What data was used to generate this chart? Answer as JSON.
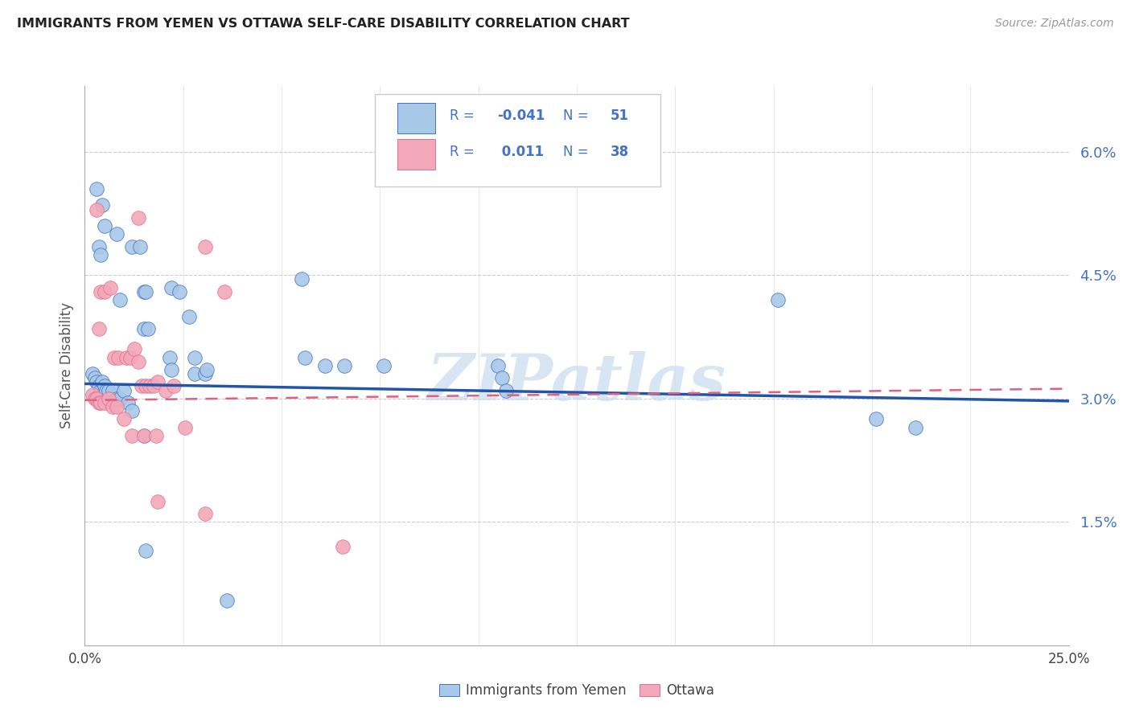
{
  "title": "IMMIGRANTS FROM YEMEN VS OTTAWA SELF-CARE DISABILITY CORRELATION CHART",
  "source": "Source: ZipAtlas.com",
  "ylabel": "Self-Care Disability",
  "xlim": [
    0.0,
    25.0
  ],
  "ylim": [
    0.0,
    6.8
  ],
  "yaxis_tick_vals": [
    1.5,
    3.0,
    4.5,
    6.0
  ],
  "yaxis_tick_labels": [
    "1.5%",
    "3.0%",
    "4.5%",
    "6.0%"
  ],
  "xtick_vals": [
    0.0,
    25.0
  ],
  "xtick_labels": [
    "0.0%",
    "25.0%"
  ],
  "color_blue": "#A8C8E8",
  "color_pink": "#F2A8B8",
  "edge_blue": "#4472C4",
  "edge_pink": "#E07090",
  "trendline_blue_color": "#2255AA",
  "trendline_pink_color": "#E06080",
  "watermark": "ZIPatlas",
  "watermark_color": "#C8DCF0",
  "legend_r1_val": "-0.041",
  "legend_n1_val": "51",
  "legend_r2_val": "0.011",
  "legend_n2_val": "38",
  "legend_text_color": "#4472C4",
  "blue_series": [
    [
      0.3,
      5.55
    ],
    [
      0.45,
      5.35
    ],
    [
      0.5,
      5.1
    ],
    [
      0.8,
      5.0
    ],
    [
      0.35,
      4.85
    ],
    [
      0.4,
      4.75
    ],
    [
      1.2,
      4.85
    ],
    [
      1.4,
      4.85
    ],
    [
      1.5,
      4.3
    ],
    [
      1.55,
      4.3
    ],
    [
      0.9,
      4.2
    ],
    [
      2.2,
      4.35
    ],
    [
      2.4,
      4.3
    ],
    [
      2.65,
      4.0
    ],
    [
      5.5,
      4.45
    ],
    [
      1.5,
      3.85
    ],
    [
      1.6,
      3.85
    ],
    [
      2.15,
      3.5
    ],
    [
      2.2,
      3.35
    ],
    [
      2.8,
      3.5
    ],
    [
      2.8,
      3.3
    ],
    [
      3.05,
      3.3
    ],
    [
      3.1,
      3.35
    ],
    [
      0.2,
      3.3
    ],
    [
      0.25,
      3.25
    ],
    [
      0.3,
      3.2
    ],
    [
      0.35,
      3.15
    ],
    [
      0.4,
      3.1
    ],
    [
      0.45,
      3.2
    ],
    [
      0.5,
      3.15
    ],
    [
      0.55,
      3.1
    ],
    [
      0.6,
      3.1
    ],
    [
      0.7,
      3.1
    ],
    [
      0.8,
      3.0
    ],
    [
      0.9,
      3.0
    ],
    [
      1.0,
      3.1
    ],
    [
      1.1,
      2.95
    ],
    [
      1.2,
      2.85
    ],
    [
      5.6,
      3.5
    ],
    [
      6.1,
      3.4
    ],
    [
      6.6,
      3.4
    ],
    [
      7.6,
      3.4
    ],
    [
      10.5,
      3.4
    ],
    [
      10.6,
      3.25
    ],
    [
      10.7,
      3.1
    ],
    [
      17.6,
      4.2
    ],
    [
      20.1,
      2.75
    ],
    [
      21.1,
      2.65
    ],
    [
      1.5,
      2.55
    ],
    [
      1.55,
      1.15
    ],
    [
      3.6,
      0.55
    ]
  ],
  "pink_series": [
    [
      0.3,
      5.3
    ],
    [
      1.35,
      5.2
    ],
    [
      3.05,
      4.85
    ],
    [
      0.4,
      4.3
    ],
    [
      0.5,
      4.3
    ],
    [
      0.65,
      4.35
    ],
    [
      3.55,
      4.3
    ],
    [
      0.35,
      3.85
    ],
    [
      0.75,
      3.5
    ],
    [
      0.85,
      3.5
    ],
    [
      1.05,
      3.5
    ],
    [
      1.15,
      3.5
    ],
    [
      1.25,
      3.6
    ],
    [
      1.35,
      3.45
    ],
    [
      1.45,
      3.15
    ],
    [
      1.55,
      3.15
    ],
    [
      1.65,
      3.15
    ],
    [
      1.75,
      3.15
    ],
    [
      1.85,
      3.2
    ],
    [
      2.05,
      3.1
    ],
    [
      2.25,
      3.15
    ],
    [
      0.2,
      3.05
    ],
    [
      0.25,
      3.0
    ],
    [
      0.3,
      3.0
    ],
    [
      0.35,
      2.95
    ],
    [
      0.4,
      2.95
    ],
    [
      0.5,
      2.95
    ],
    [
      0.6,
      3.0
    ],
    [
      0.7,
      2.9
    ],
    [
      0.8,
      2.9
    ],
    [
      1.0,
      2.75
    ],
    [
      1.2,
      2.55
    ],
    [
      1.5,
      2.55
    ],
    [
      1.8,
      2.55
    ],
    [
      2.55,
      2.65
    ],
    [
      1.85,
      1.75
    ],
    [
      3.05,
      1.6
    ],
    [
      6.55,
      1.2
    ]
  ],
  "blue_trend": [
    0.0,
    3.18,
    25.0,
    2.97
  ],
  "pink_trend": [
    0.0,
    2.98,
    25.0,
    3.12
  ]
}
